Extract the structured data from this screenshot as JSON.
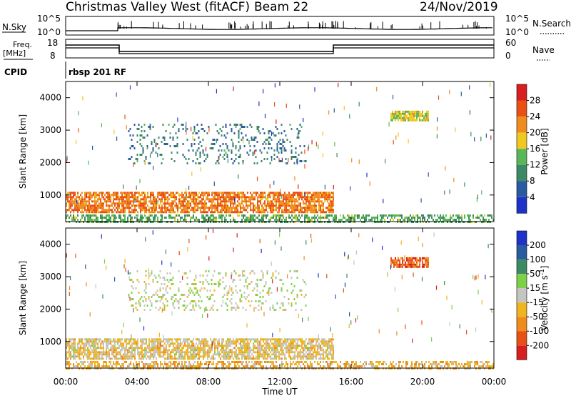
{
  "header": {
    "site": "Christmas Valley West (fitACF)",
    "beam": "Beam 22",
    "date": "24/Nov/2019"
  },
  "panels": {
    "nsky": {
      "label": "N.Sky",
      "ticks": [
        "10^5",
        "10^0"
      ],
      "right_label": "N.Search",
      "right_ticks": [
        "10^5",
        "10^0"
      ]
    },
    "freq": {
      "label_top": "Freq.",
      "label_unit": "[MHz]",
      "ticks": [
        "18",
        "8"
      ],
      "right_label": "Nave",
      "right_ticks": [
        "60",
        "0"
      ]
    },
    "cpid": {
      "label": "CPID",
      "value": "rbsp 201 RF"
    }
  },
  "time_axis": {
    "label": "Time UT",
    "ticks": [
      "00:00",
      "04:00",
      "08:00",
      "12:00",
      "16:00",
      "20:00",
      "00:00"
    ]
  },
  "colors": {
    "power": [
      "#1c32c8",
      "#2a5aa0",
      "#3c8a64",
      "#58b858",
      "#f0c81e",
      "#f08c1e",
      "#e85014",
      "#d81e1e"
    ],
    "velocity": [
      "#d81e1e",
      "#e85014",
      "#f08c1e",
      "#f0b41e",
      "#c4c4c0",
      "#7ed048",
      "#3c8a64",
      "#2a5aa0",
      "#1c32c8"
    ]
  },
  "chart_data": [
    {
      "type": "heatmap",
      "name": "power",
      "xlabel": "",
      "ylabel": "Slant Range [km]",
      "x_range_hours": [
        0,
        24
      ],
      "ylim": [
        180,
        4500
      ],
      "y_ticks": [
        1000,
        2000,
        3000,
        4000
      ],
      "colorbar": {
        "label": "Power [dB]",
        "ticks": [
          "28",
          "24",
          "20",
          "16",
          "12",
          "8",
          "4"
        ],
        "range": [
          0,
          30
        ]
      },
      "features": [
        {
          "t_start": 0.0,
          "t_end": 15.0,
          "range_km": [
            500,
            1100
          ],
          "value_db": 22
        },
        {
          "t_start": 3.5,
          "t_end": 13.5,
          "range_km": [
            2000,
            3200
          ],
          "value_db": 8
        },
        {
          "t_start": 18.2,
          "t_end": 20.3,
          "range_km": [
            3300,
            3600
          ],
          "value_db": 16
        },
        {
          "t_start": 0.0,
          "t_end": 24.0,
          "range_km": [
            180,
            400
          ],
          "value_db": 12
        }
      ]
    },
    {
      "type": "heatmap",
      "name": "velocity",
      "xlabel": "Time UT",
      "ylabel": "Slant Range [km]",
      "x_range_hours": [
        0,
        24
      ],
      "ylim": [
        180,
        4500
      ],
      "y_ticks": [
        1000,
        2000,
        3000,
        4000
      ],
      "colorbar": {
        "label": "Velocity [m s^-1]",
        "ticks": [
          "200",
          "100",
          "50",
          "15",
          "-15",
          "-50",
          "-100",
          "-200"
        ],
        "range": [
          -250,
          250
        ]
      },
      "features": [
        {
          "t_start": 0.0,
          "t_end": 15.0,
          "range_km": [
            500,
            1100
          ],
          "value_ms": -30
        },
        {
          "t_start": 3.5,
          "t_end": 13.5,
          "range_km": [
            2000,
            3200
          ],
          "value_ms": 10
        },
        {
          "t_start": 18.2,
          "t_end": 20.3,
          "range_km": [
            3300,
            3600
          ],
          "value_ms": -150
        },
        {
          "t_start": 0.0,
          "t_end": 24.0,
          "range_km": [
            180,
            400
          ],
          "value_ms": -60
        }
      ]
    }
  ]
}
